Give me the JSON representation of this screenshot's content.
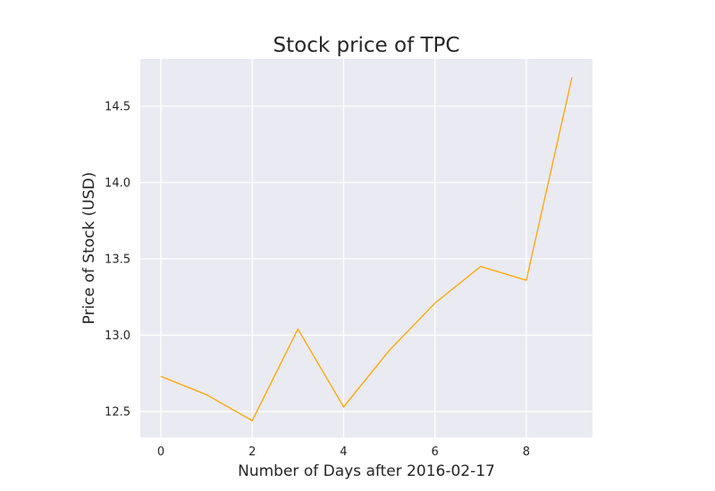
{
  "chart_data": {
    "type": "line",
    "title": "Stock price of TPC",
    "xlabel": "Number of Days after 2016-02-17",
    "ylabel": "Price of Stock (USD)",
    "x": [
      0,
      1,
      2,
      3,
      4,
      5,
      6,
      7,
      8,
      9
    ],
    "series": [
      {
        "values": [
          12.73,
          12.61,
          12.44,
          13.04,
          12.53,
          12.9,
          13.21,
          13.45,
          13.36,
          14.69
        ],
        "color": "#ffa500"
      }
    ],
    "xlim": [
      -0.45,
      9.45
    ],
    "ylim": [
      12.33,
      14.81
    ],
    "xticks": [
      0,
      2,
      4,
      6,
      8
    ],
    "xtick_labels": [
      "0",
      "2",
      "4",
      "6",
      "8"
    ],
    "yticks": [
      12.5,
      13.0,
      13.5,
      14.0,
      14.5
    ],
    "ytick_labels": [
      "12.5",
      "13.0",
      "13.5",
      "14.0",
      "14.5"
    ],
    "grid": true,
    "background_color": "#eaeaf2",
    "grid_color": "#ffffff",
    "text_color": "#262626"
  }
}
